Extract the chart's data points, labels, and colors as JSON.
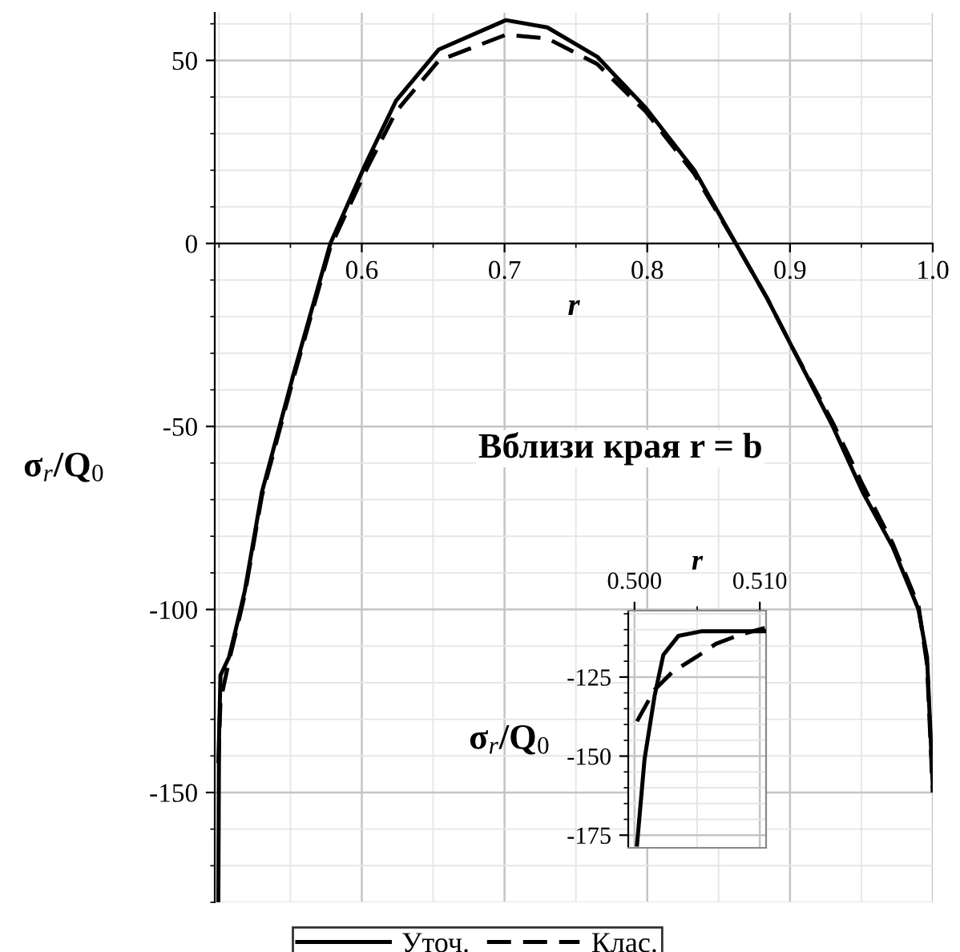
{
  "chart_data": [
    {
      "type": "line",
      "xlabel": "r",
      "ylabel": "σ$_{r}$/Q$_{0}$",
      "xlim": [
        0.497,
        1.0
      ],
      "ylim": [
        -180,
        63
      ],
      "xticks": [
        0.6,
        0.7,
        0.8,
        0.9,
        {
          "value": 1.0,
          "label": "1.0"
        }
      ],
      "yticks": [
        -150,
        -100,
        -50,
        0,
        50
      ],
      "grid": true,
      "legend": "bottom",
      "annotations": [
        "Вблизи края r = b"
      ],
      "series": [
        {
          "name": "Уточ.",
          "color": "#000000",
          "line_style": "solid",
          "x": [
            0.4995,
            0.5,
            0.501,
            0.507,
            0.512,
            0.518,
            0.53,
            0.552,
            0.578,
            0.603,
            0.624,
            0.654,
            0.701,
            0.73,
            0.765,
            0.799,
            0.833,
            0.862,
            0.884,
            0.901,
            0.93,
            0.951,
            0.972,
            0.99,
            0.996,
            1.0
          ],
          "values": [
            -180,
            -135,
            -118,
            -113,
            -105,
            -95,
            -68,
            -36,
            0,
            22,
            39,
            53,
            61,
            59,
            51,
            37,
            20,
            0,
            -15,
            -28,
            -50,
            -68,
            -83,
            -100,
            -113,
            -148
          ]
        },
        {
          "name": "Клас.",
          "color": "#000000",
          "line_style": "dashed",
          "x": [
            0.4995,
            0.501,
            0.507,
            0.512,
            0.518,
            0.53,
            0.552,
            0.578,
            0.603,
            0.624,
            0.654,
            0.701,
            0.73,
            0.765,
            0.799,
            0.833,
            0.862,
            0.884,
            0.901,
            0.93,
            0.951,
            0.972,
            0.99,
            0.996,
            1.0
          ],
          "values": [
            -142,
            -125,
            -114,
            -106,
            -96,
            -69,
            -37,
            -1,
            20,
            36,
            50,
            57,
            56,
            49,
            36,
            19,
            0,
            -15,
            -28,
            -49,
            -66,
            -82,
            -99,
            -115,
            -150
          ]
        }
      ]
    },
    {
      "type": "line",
      "xlabel": "r",
      "ylabel": "σ$_{r}$/Q$_{0}$",
      "xlim": [
        0.4995,
        0.5105
      ],
      "ylim": [
        -179,
        -104
      ],
      "xticks": [
        {
          "value": 0.5,
          "label": "0.500"
        },
        {
          "value": 0.51,
          "label": "0.510"
        }
      ],
      "yticks": [
        -175,
        -150,
        -125
      ],
      "grid": true,
      "series": [
        {
          "color": "#000000",
          "line_style": "solid",
          "x": [
            0.5002,
            0.5008,
            0.5016,
            0.5023,
            0.5035,
            0.5054,
            0.5105
          ],
          "values": [
            -178,
            -151,
            -131,
            -118,
            -112,
            -110.5,
            -110.5
          ]
        },
        {
          "color": "#000000",
          "line_style": "dashed",
          "x": [
            0.5002,
            0.5016,
            0.503,
            0.505,
            0.5065,
            0.5085,
            0.5104
          ],
          "values": [
            -139,
            -129,
            -123.5,
            -118.5,
            -114.5,
            -111.5,
            -109.5
          ]
        }
      ]
    }
  ]
}
